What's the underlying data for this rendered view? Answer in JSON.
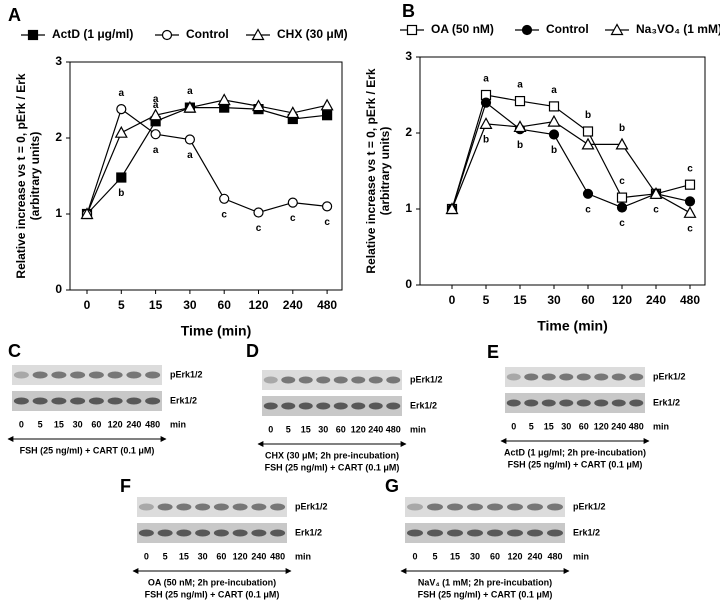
{
  "chart_data": [
    {
      "type": "line",
      "panel": "A",
      "categories": [
        "0",
        "5",
        "15",
        "30",
        "60",
        "120",
        "240",
        "480"
      ],
      "xlabel": "Time (min)",
      "ylabel": [
        "Relative increase vs t = 0, pErk / Erk",
        "(arbitrary units)"
      ],
      "ylim": [
        0,
        3
      ],
      "yticks": [
        0,
        1,
        2,
        3
      ],
      "series": [
        {
          "name": "ActD (1 μg/ml)",
          "color": "#000000",
          "marker": "square",
          "filled": true,
          "values": [
            1.0,
            1.48,
            2.22,
            2.4,
            2.4,
            2.38,
            2.25,
            2.3
          ],
          "point_labels": [
            null,
            "b",
            "a",
            null,
            null,
            null,
            null,
            null
          ]
        },
        {
          "name": "Control",
          "color": "#000000",
          "marker": "circle",
          "filled": false,
          "values": [
            1.0,
            2.38,
            2.05,
            1.98,
            1.2,
            1.02,
            1.15,
            1.1
          ],
          "point_labels": [
            null,
            "a",
            "a",
            "a",
            "c",
            "c",
            "c",
            "c"
          ]
        },
        {
          "name": "CHX (30 μM)",
          "color": "#000000",
          "marker": "triangle",
          "filled": false,
          "values": [
            1.0,
            2.07,
            2.3,
            2.4,
            2.5,
            2.42,
            2.33,
            2.43
          ],
          "point_labels": [
            null,
            null,
            "a",
            "a",
            null,
            null,
            null,
            null
          ]
        }
      ]
    },
    {
      "type": "line",
      "panel": "B",
      "categories": [
        "0",
        "5",
        "15",
        "30",
        "60",
        "120",
        "240",
        "480"
      ],
      "xlabel": "Time (min)",
      "ylabel": [
        "Relative increase vs t = 0, pErk / Erk",
        "(arbitrary units)"
      ],
      "ylim": [
        0,
        3
      ],
      "yticks": [
        0,
        1,
        2,
        3
      ],
      "series": [
        {
          "name": "OA (50 nM)",
          "color": "#000000",
          "marker": "square",
          "filled": false,
          "values": [
            1.0,
            2.5,
            2.42,
            2.35,
            2.02,
            1.15,
            1.2,
            1.32
          ],
          "point_labels": [
            null,
            "a",
            "a",
            "a",
            "b",
            "c",
            "c",
            "c"
          ]
        },
        {
          "name": "Control",
          "color": "#000000",
          "marker": "circle",
          "filled": true,
          "values": [
            1.0,
            2.4,
            2.05,
            1.98,
            1.2,
            1.02,
            1.2,
            1.1
          ],
          "point_labels": [
            null,
            null,
            "b",
            "b",
            "c",
            "c",
            null,
            null
          ]
        },
        {
          "name": "Na₃VO₄ (1 mM)",
          "color": "#000000",
          "marker": "triangle",
          "filled": false,
          "values": [
            1.0,
            2.12,
            2.08,
            2.15,
            1.85,
            1.85,
            1.2,
            0.95
          ],
          "point_labels": [
            null,
            "b",
            null,
            null,
            null,
            "b",
            null,
            "c"
          ]
        }
      ]
    }
  ],
  "blots": [
    {
      "panel": "C",
      "bands": [
        "pErk1/2",
        "Erk1/2"
      ],
      "lanes": [
        "0",
        "5",
        "15",
        "30",
        "60",
        "120",
        "240",
        "480"
      ],
      "unit": "min",
      "caption": [
        "FSH (25 ng/ml) + CART (0.1 μM)"
      ]
    },
    {
      "panel": "D",
      "bands": [
        "pErk1/2",
        "Erk1/2"
      ],
      "lanes": [
        "0",
        "5",
        "15",
        "30",
        "60",
        "120",
        "240",
        "480"
      ],
      "unit": "min",
      "caption": [
        "CHX (30 μM; 2h pre-incubation)",
        "FSH (25 ng/ml) + CART (0.1 μM)"
      ]
    },
    {
      "panel": "E",
      "bands": [
        "pErk1/2",
        "Erk1/2"
      ],
      "lanes": [
        "0",
        "5",
        "15",
        "30",
        "60",
        "120",
        "240",
        "480"
      ],
      "unit": "min",
      "caption": [
        "ActD (1 μg/ml; 2h pre-incubation)",
        "FSH (25 ng/ml) + CART (0.1 μM)"
      ]
    },
    {
      "panel": "F",
      "bands": [
        "pErk1/2",
        "Erk1/2"
      ],
      "lanes": [
        "0",
        "5",
        "15",
        "30",
        "60",
        "120",
        "240",
        "480"
      ],
      "unit": "min",
      "caption": [
        "OA (50 nM; 2h pre-incubation)",
        "FSH (25 ng/ml) + CART (0.1 μM)"
      ]
    },
    {
      "panel": "G",
      "bands": [
        "pErk1/2",
        "Erk1/2"
      ],
      "lanes": [
        "0",
        "5",
        "15",
        "30",
        "60",
        "120",
        "240",
        "480"
      ],
      "unit": "min",
      "caption": [
        "NaV₄ (1 mM; 2h pre-incubation)",
        "FSH (25 ng/ml) + CART (0.1 μM)"
      ]
    }
  ]
}
